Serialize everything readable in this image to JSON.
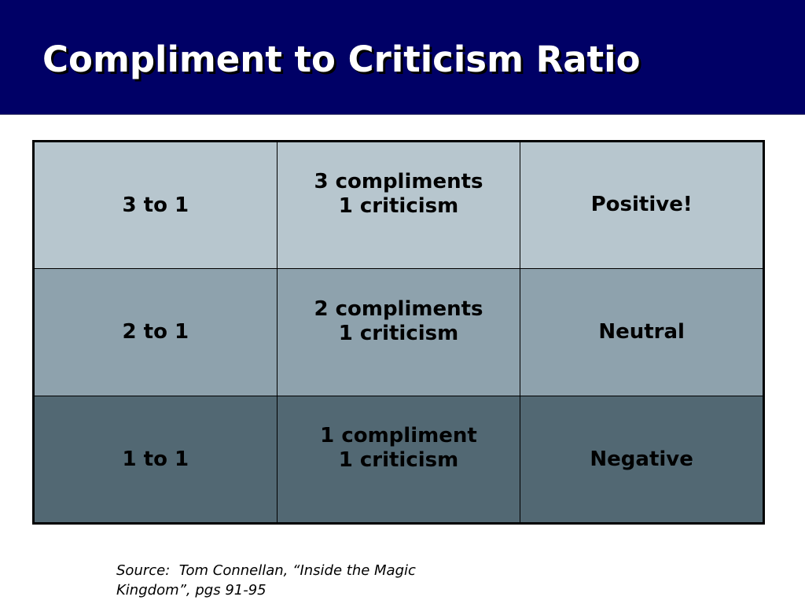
{
  "slide": {
    "title": "Compliment to Criticism Ratio"
  },
  "table": {
    "rows": [
      {
        "ratio": "3 to 1",
        "compliments": "3 compliments",
        "criticism": "1 criticism",
        "result": "Positive!",
        "color": "#b7c6ce"
      },
      {
        "ratio": "2 to 1",
        "compliments": "2 compliments",
        "criticism": "1 criticism",
        "result": "Neutral",
        "color": "#8ea2ad"
      },
      {
        "ratio": "1 to 1",
        "compliments": "1 compliment",
        "criticism": "1 criticism",
        "result": "Negative",
        "color": "#526873"
      }
    ]
  },
  "footer": {
    "source_line_1": "Source:  Tom Connellan, “Inside the Magic",
    "source_line_2": "Kingdom”, pgs 91-95"
  },
  "colors": {
    "title_bar": "#000066",
    "title_text": "#ffffff"
  }
}
